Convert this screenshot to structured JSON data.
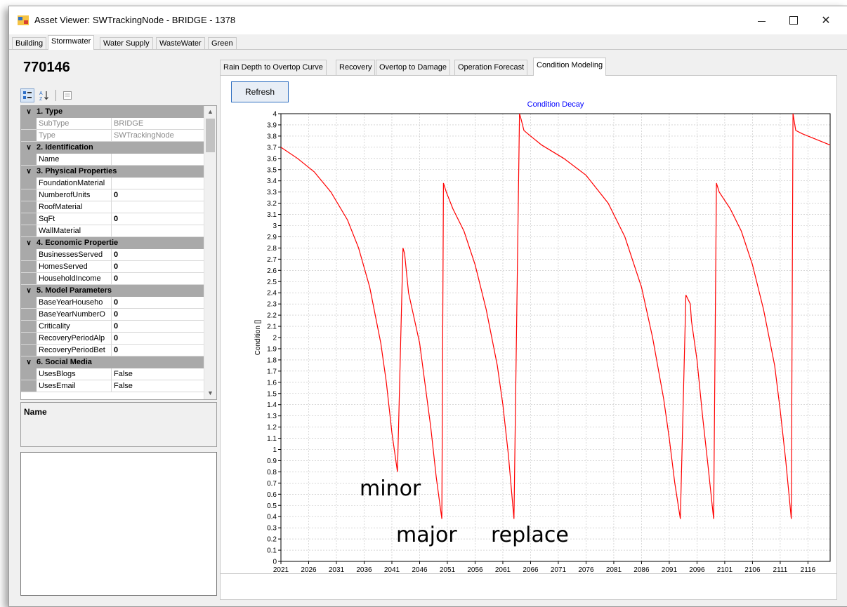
{
  "window": {
    "title": "Asset Viewer: SWTrackingNode - BRIDGE - 1378",
    "minimize_glyph": "—",
    "maximize_glyph": "☐",
    "close_glyph": "✕"
  },
  "top_tabs": [
    {
      "label": "Building",
      "active": false
    },
    {
      "label": "Stormwater",
      "active": true
    },
    {
      "label": "Water Supply",
      "active": false
    },
    {
      "label": "WasteWater",
      "active": false
    },
    {
      "label": "Green",
      "active": false
    }
  ],
  "asset_id": "770146",
  "property_grid": {
    "categories": [
      {
        "label": "1. Type",
        "rows": [
          {
            "name": "SubType",
            "value": "BRIDGE",
            "readonly": true
          },
          {
            "name": "Type",
            "value": "SWTrackingNode",
            "readonly": true
          }
        ]
      },
      {
        "label": "2. Identification",
        "rows": [
          {
            "name": "Name",
            "value": "",
            "readonly": false
          }
        ]
      },
      {
        "label": "3. Physical Properties",
        "rows": [
          {
            "name": "FoundationMaterial",
            "value": "",
            "readonly": false
          },
          {
            "name": "NumberofUnits",
            "value": "0",
            "readonly": false
          },
          {
            "name": "RoofMaterial",
            "value": "",
            "readonly": false
          },
          {
            "name": "SqFt",
            "value": "0",
            "readonly": false
          },
          {
            "name": "WallMaterial",
            "value": "",
            "readonly": false
          }
        ]
      },
      {
        "label": "4. Economic Propertie",
        "rows": [
          {
            "name": "BusinessesServed",
            "value": "0",
            "readonly": false
          },
          {
            "name": "HomesServed",
            "value": "0",
            "readonly": false
          },
          {
            "name": "HouseholdIncome",
            "value": "0",
            "readonly": false
          }
        ]
      },
      {
        "label": "5. Model Parameters",
        "rows": [
          {
            "name": "BaseYearHouseho",
            "value": "0",
            "readonly": false
          },
          {
            "name": "BaseYearNumberO",
            "value": "0",
            "readonly": false
          },
          {
            "name": "Criticality",
            "value": "0",
            "readonly": false
          },
          {
            "name": "RecoveryPeriodAlp",
            "value": "0",
            "readonly": false
          },
          {
            "name": "RecoveryPeriodBet",
            "value": "0",
            "readonly": false
          }
        ]
      },
      {
        "label": "6. Social Media",
        "rows": [
          {
            "name": "UsesBlogs",
            "value": "False",
            "readonly": false
          },
          {
            "name": "UsesEmail",
            "value": "False",
            "readonly": false
          }
        ]
      }
    ],
    "description_title": "Name"
  },
  "inner_tabs": [
    {
      "label": "Rain Depth to Overtop Curve",
      "active": false
    },
    {
      "label": "Recovery",
      "active": false
    },
    {
      "label": "Overtop to Damage",
      "active": false
    },
    {
      "label": "Operation Forecast",
      "active": false
    },
    {
      "label": "Condition Modeling",
      "active": true
    }
  ],
  "refresh_label": "Refresh",
  "annotations": {
    "minor": "minor",
    "major": "major",
    "replace": "replace"
  },
  "chart_data": {
    "type": "line",
    "title": "Condition Decay",
    "xlabel": "",
    "ylabel": "Condition []",
    "xlim": [
      2021,
      2120
    ],
    "ylim": [
      0,
      4
    ],
    "x_ticks": [
      2021,
      2026,
      2031,
      2036,
      2041,
      2046,
      2051,
      2056,
      2061,
      2066,
      2071,
      2076,
      2081,
      2086,
      2091,
      2096,
      2101,
      2106,
      2111,
      2116
    ],
    "y_ticks": [
      0,
      0.1,
      0.2,
      0.3,
      0.4,
      0.5,
      0.6,
      0.7,
      0.8,
      0.9,
      1,
      1.1,
      1.2,
      1.3,
      1.4,
      1.5,
      1.6,
      1.7,
      1.8,
      1.9,
      2,
      2.1,
      2.2,
      2.3,
      2.4,
      2.5,
      2.6,
      2.7,
      2.8,
      2.9,
      3,
      3.1,
      3.2,
      3.3,
      3.4,
      3.5,
      3.6,
      3.7,
      3.8,
      3.9,
      4
    ],
    "grid": true,
    "line_color": "#ff0000",
    "series": [
      {
        "x": [
          2021,
          2024,
          2027,
          2030,
          2033,
          2035,
          2037,
          2039,
          2040,
          2041,
          2042,
          2043,
          2043.3,
          2044,
          2046,
          2048,
          2049,
          2050,
          2050.3,
          2050.8,
          2052,
          2054,
          2056,
          2058,
          2060,
          2061,
          2062,
          2063,
          2064,
          2064.3,
          2064.8,
          2066,
          2068,
          2072,
          2076,
          2080,
          2083,
          2086,
          2088,
          2090,
          2091,
          2092,
          2093,
          2094,
          2094.8,
          2095,
          2096,
          2097,
          2098,
          2099,
          2099.5,
          2100,
          2102,
          2104,
          2106,
          2108,
          2110,
          2111,
          2112,
          2113,
          2113.3,
          2113.8,
          2115,
          2117,
          2120
        ],
        "y": [
          3.7,
          3.6,
          3.48,
          3.3,
          3.05,
          2.8,
          2.45,
          1.95,
          1.6,
          1.15,
          0.8,
          2.8,
          2.75,
          2.4,
          1.95,
          1.2,
          0.75,
          0.38,
          3.38,
          3.3,
          3.15,
          2.95,
          2.65,
          2.25,
          1.75,
          1.4,
          0.95,
          0.38,
          4.0,
          3.95,
          3.85,
          3.8,
          3.72,
          3.6,
          3.45,
          3.2,
          2.9,
          2.45,
          2.0,
          1.45,
          1.1,
          0.7,
          0.38,
          2.38,
          2.3,
          2.15,
          1.8,
          1.3,
          0.85,
          0.38,
          3.38,
          3.3,
          3.15,
          2.95,
          2.65,
          2.25,
          1.75,
          1.35,
          0.9,
          0.38,
          4.0,
          3.85,
          3.82,
          3.78,
          3.72
        ]
      }
    ]
  }
}
